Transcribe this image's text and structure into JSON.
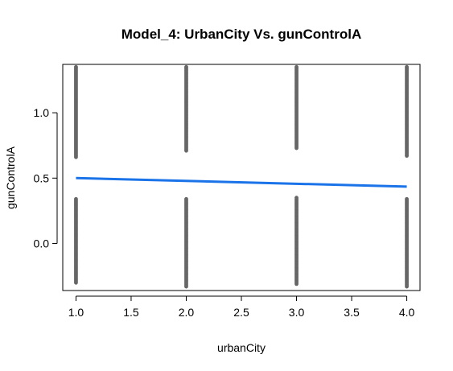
{
  "chart_data": {
    "type": "scatter",
    "title": "Model_4: UrbanCity Vs. gunControlA",
    "xlabel": "urbanCity",
    "ylabel": "gunControlA",
    "xlim": [
      0.88,
      4.12
    ],
    "ylim": [
      -0.36,
      1.37
    ],
    "x_ticks": [
      1.0,
      1.5,
      2.0,
      2.5,
      3.0,
      3.5,
      4.0
    ],
    "x_tick_labels": [
      "1.0",
      "1.5",
      "2.0",
      "2.5",
      "3.0",
      "3.5",
      "4.0"
    ],
    "y_ticks": [
      0.0,
      0.5,
      1.0
    ],
    "y_tick_labels": [
      "0.0",
      "0.5",
      "1.0"
    ],
    "grid": false,
    "point_color": "#666666",
    "line_color": "#1a73e8",
    "point_groups": [
      {
        "x": 1.0,
        "lower_range": [
          -0.31,
          0.34
        ],
        "upper_range": [
          0.66,
          1.35
        ]
      },
      {
        "x": 2.0,
        "lower_range": [
          -0.33,
          0.34
        ],
        "upper_range": [
          0.7,
          1.35
        ]
      },
      {
        "x": 3.0,
        "lower_range": [
          -0.31,
          0.35
        ],
        "upper_range": [
          0.72,
          1.35
        ]
      },
      {
        "x": 4.0,
        "lower_range": [
          -0.33,
          0.34
        ],
        "upper_range": [
          0.67,
          1.35
        ]
      }
    ],
    "fit_line": {
      "x": [
        1.0,
        4.0
      ],
      "y": [
        0.5,
        0.435
      ]
    }
  }
}
